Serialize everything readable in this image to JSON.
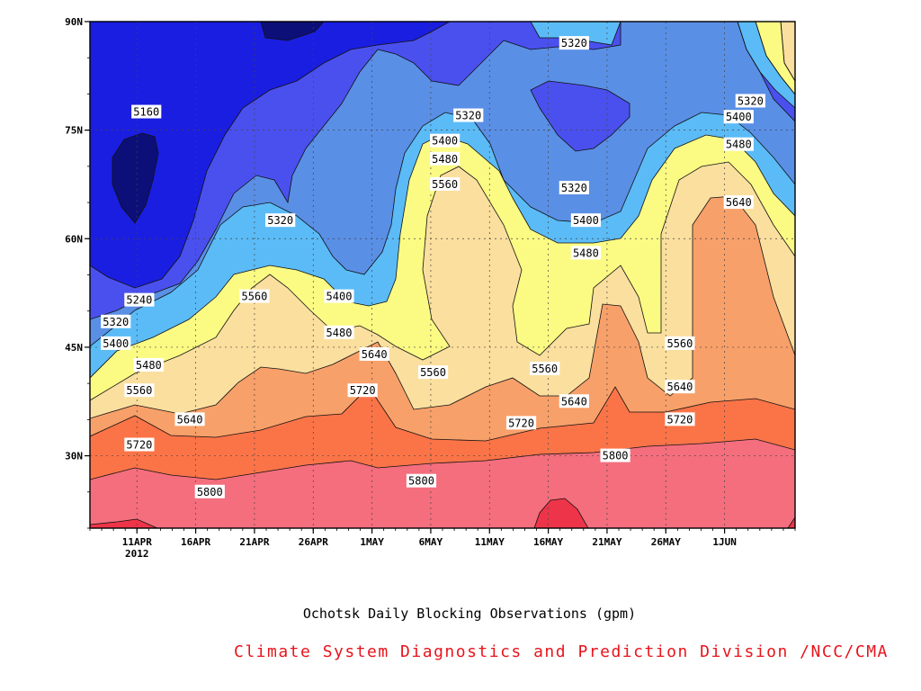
{
  "chart_data": {
    "type": "heatmap",
    "title": "Ochotsk Daily Blocking Observations (gpm)",
    "credit": "Climate System Diagnostics and Prediction Division /NCC/CMA",
    "x_ticks": [
      {
        "label": "11APR",
        "sub": "2012",
        "day": 0
      },
      {
        "label": "16APR",
        "sub": "",
        "day": 5
      },
      {
        "label": "21APR",
        "sub": "",
        "day": 10
      },
      {
        "label": "26APR",
        "sub": "",
        "day": 15
      },
      {
        "label": "1MAY",
        "sub": "",
        "day": 20
      },
      {
        "label": "6MAY",
        "sub": "",
        "day": 25
      },
      {
        "label": "11MAY",
        "sub": "",
        "day": 30
      },
      {
        "label": "16MAY",
        "sub": "",
        "day": 35
      },
      {
        "label": "21MAY",
        "sub": "",
        "day": 40
      },
      {
        "label": "26MAY",
        "sub": "",
        "day": 45
      },
      {
        "label": "1JUN",
        "sub": "",
        "day": 50
      }
    ],
    "y_ticks": [
      {
        "label": "90N",
        "lat": 90
      },
      {
        "label": "75N",
        "lat": 75
      },
      {
        "label": "60N",
        "lat": 60
      },
      {
        "label": "45N",
        "lat": 45
      },
      {
        "label": "30N",
        "lat": 30
      }
    ],
    "xlim_days": [
      -4,
      56
    ],
    "ylim_lat": [
      20,
      90
    ],
    "grid": true,
    "contour_levels": [
      5160,
      5240,
      5320,
      5400,
      5480,
      5560,
      5640,
      5720,
      5800,
      5880
    ],
    "fill_colors": {
      "below_5160": "#0c0f78",
      "5160_5240": "#1a1ee0",
      "5240_5320": "#4a50ee",
      "5320_5400": "#5a8fe6",
      "5400_5480": "#5bbbf7",
      "5480_5560": "#fbfb84",
      "5560_5640": "#fbdf9e",
      "5640_5720": "#f8a06a",
      "5720_5800": "#fb7448",
      "5800_5880": "#f46e7e",
      "above_5880": "#ee3448"
    },
    "contour_labels": [
      {
        "text": "5160",
        "day": 0.8,
        "lat": 77.5
      },
      {
        "text": "5240",
        "day": 0.2,
        "lat": 51.5
      },
      {
        "text": "5320",
        "day": -1.8,
        "lat": 48.5
      },
      {
        "text": "5400",
        "day": -1.8,
        "lat": 45.5
      },
      {
        "text": "5480",
        "day": 1.0,
        "lat": 42.5
      },
      {
        "text": "5560",
        "day": 0.2,
        "lat": 39.0
      },
      {
        "text": "5640",
        "day": 4.5,
        "lat": 35.0
      },
      {
        "text": "5720",
        "day": 0.2,
        "lat": 31.5
      },
      {
        "text": "5800",
        "day": 6.2,
        "lat": 25.0
      },
      {
        "text": "5320",
        "day": 12.2,
        "lat": 62.5
      },
      {
        "text": "5560",
        "day": 10.0,
        "lat": 52.0
      },
      {
        "text": "5400",
        "day": 17.2,
        "lat": 52.0
      },
      {
        "text": "5480",
        "day": 17.2,
        "lat": 47.0
      },
      {
        "text": "5640",
        "day": 20.2,
        "lat": 44.0
      },
      {
        "text": "5720",
        "day": 19.2,
        "lat": 39.0
      },
      {
        "text": "5800",
        "day": 24.2,
        "lat": 26.5
      },
      {
        "text": "5320",
        "day": 28.2,
        "lat": 77.0
      },
      {
        "text": "5400",
        "day": 26.2,
        "lat": 73.5
      },
      {
        "text": "5480",
        "day": 26.2,
        "lat": 71.0
      },
      {
        "text": "5560",
        "day": 26.2,
        "lat": 67.5
      },
      {
        "text": "5560",
        "day": 25.2,
        "lat": 41.5
      },
      {
        "text": "5320",
        "day": 37.2,
        "lat": 87.0
      },
      {
        "text": "5320",
        "day": 37.2,
        "lat": 67.0
      },
      {
        "text": "5400",
        "day": 38.2,
        "lat": 62.5
      },
      {
        "text": "5480",
        "day": 38.2,
        "lat": 58.0
      },
      {
        "text": "5560",
        "day": 34.7,
        "lat": 42.0
      },
      {
        "text": "5640",
        "day": 37.2,
        "lat": 37.5
      },
      {
        "text": "5720",
        "day": 32.7,
        "lat": 34.5
      },
      {
        "text": "5800",
        "day": 40.7,
        "lat": 30.0
      },
      {
        "text": "5320",
        "day": 52.2,
        "lat": 79.0
      },
      {
        "text": "5400",
        "day": 51.2,
        "lat": 76.8
      },
      {
        "text": "5480",
        "day": 51.2,
        "lat": 73.0
      },
      {
        "text": "5640",
        "day": 51.2,
        "lat": 65.0
      },
      {
        "text": "5560",
        "day": 46.2,
        "lat": 45.5
      },
      {
        "text": "5640",
        "day": 46.2,
        "lat": 39.5
      },
      {
        "text": "5720",
        "day": 46.2,
        "lat": 35.0
      }
    ]
  }
}
